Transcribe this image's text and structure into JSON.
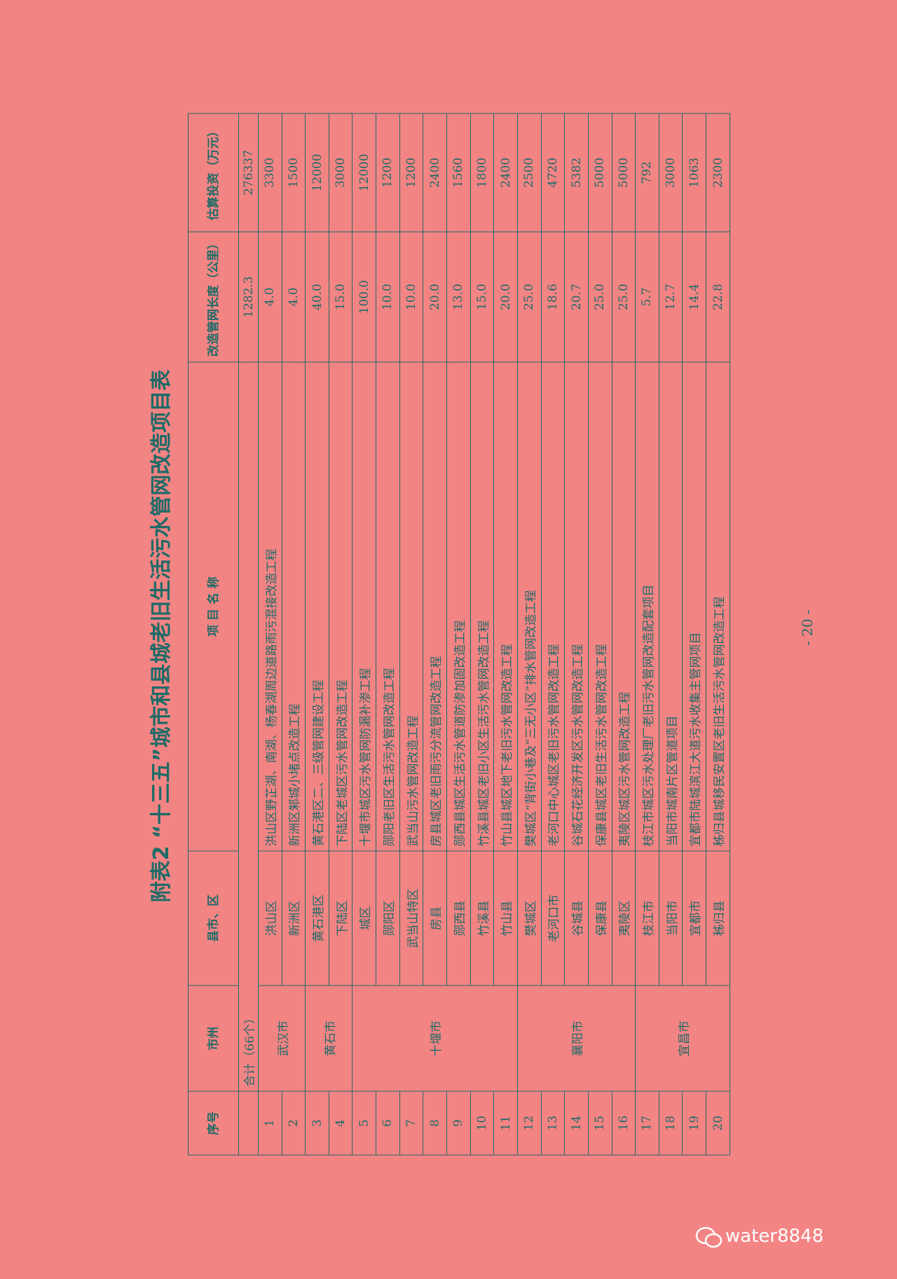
{
  "title": "附表2 “十三五”城市和县城老旧生活污水管网改造项目表",
  "table": {
    "headers": [
      "序号",
      "市州",
      "县市、区",
      "项 目 名 称",
      "改造管网长度（公里）",
      "估算投资（万元）"
    ],
    "total": {
      "label": "合计（66个）",
      "length": "1282.3",
      "investment": "276337"
    },
    "rows": [
      [
        "1",
        "武汉市",
        "洪山区",
        "洪山区野芷湖、南湖、杨春湖周边道路雨污混接改造工程",
        "4.0",
        "3300"
      ],
      [
        "2",
        null,
        "新洲区",
        "新洲区邾城小堵点改造工程",
        "4.0",
        "1500"
      ],
      [
        "3",
        "黄石市",
        "黄石港区",
        "黄石港区二、三级管网建设工程",
        "40.0",
        "12000"
      ],
      [
        "4",
        null,
        "下陆区",
        "下陆区老城区污水管网改造工程",
        "15.0",
        "3000"
      ],
      [
        "5",
        "十堰市",
        "城区",
        "十堰市城区污水管网防漏补渗工程",
        "100.0",
        "12000"
      ],
      [
        "6",
        null,
        "郧阳区",
        "郧阳老旧区生活污水管网改造工程",
        "10.0",
        "1200"
      ],
      [
        "7",
        null,
        "武当山特区",
        "武当山污水管网改造工程",
        "10.0",
        "1200"
      ],
      [
        "8",
        null,
        "房县",
        "房县城区老旧雨污分流管网改造工程",
        "20.0",
        "2400"
      ],
      [
        "9",
        null,
        "郧西县",
        "郧西县城区生活污水管道防渗加固改造工程",
        "13.0",
        "1560"
      ],
      [
        "10",
        null,
        "竹溪县",
        "竹溪县城区老旧小区生活污水管网改造工程",
        "15.0",
        "1800"
      ],
      [
        "11",
        null,
        "竹山县",
        "竹山县城区地下老旧污水管网改造工程",
        "20.0",
        "2400"
      ],
      [
        "12",
        "襄阳市",
        "樊城区",
        "樊城区“背街小巷及“三无小区”排水管网改造工程",
        "25.0",
        "2500"
      ],
      [
        "13",
        null,
        "老河口市",
        "老河口中心城区老旧污水管网改造工程",
        "18.6",
        "4720"
      ],
      [
        "14",
        null,
        "谷城县",
        "谷城石花经济开发区污水管网改造工程",
        "20.7",
        "5382"
      ],
      [
        "15",
        null,
        "保康县",
        "保康县城区老旧生活污水管网改造工程",
        "25.0",
        "5000"
      ],
      [
        "16",
        null,
        "夷陵区",
        "夷陵区城区污水管网改造工程",
        "25.0",
        "5000"
      ],
      [
        "17",
        "宜昌市",
        "枝江市",
        "枝江市城区污水处理厂老旧污水管网改造配套项目",
        "5.7",
        "792"
      ],
      [
        "18",
        null,
        "当阳市",
        "当阳市城南片区管道项目",
        "12.7",
        "3000"
      ],
      [
        "19",
        null,
        "宜都市",
        "宜都市陆城滨江大道污水收集主管网项目",
        "14.4",
        "1063"
      ],
      [
        "20",
        null,
        "秭归县",
        "秭归县城移民安置区老旧生活污水管网改造工程",
        "22.8",
        "2300"
      ]
    ]
  },
  "page_number": "- 20 -",
  "watermark": "water8848"
}
